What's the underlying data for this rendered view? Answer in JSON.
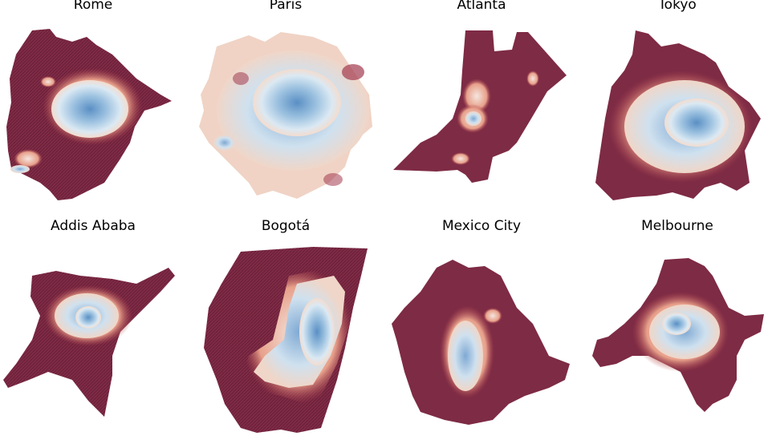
{
  "figure": {
    "panels": [
      {
        "id": "rome",
        "title": "Rome"
      },
      {
        "id": "paris",
        "title": "Paris"
      },
      {
        "id": "atlanta",
        "title": "Atlanta"
      },
      {
        "id": "tokyo",
        "title": "Tokyo"
      },
      {
        "id": "addis-ababa",
        "title": "Addis Ababa"
      },
      {
        "id": "bogota",
        "title": "Bogotá"
      },
      {
        "id": "mexico-city",
        "title": "Mexico City"
      },
      {
        "id": "melbourne",
        "title": "Melbourne"
      }
    ]
  },
  "colors": {
    "outer": "#7e2b45",
    "mid_light": "#f2dcd2",
    "blue_light": "#cfe1ef",
    "blue_mid": "#9dc2e0",
    "blue_dark": "#5a8fc4"
  }
}
